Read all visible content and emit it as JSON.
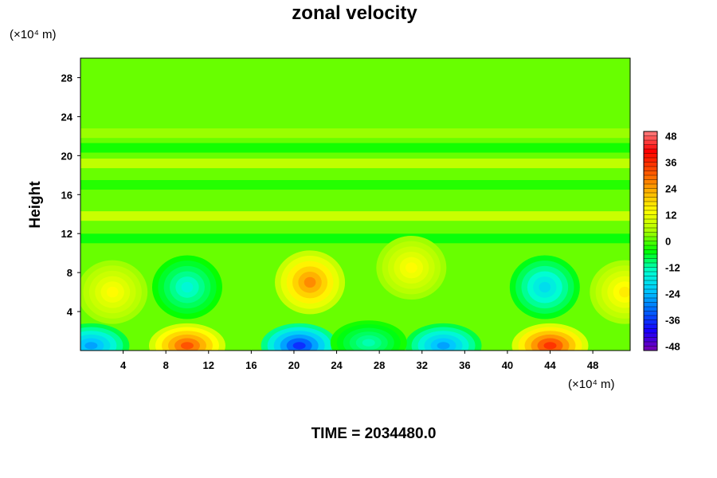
{
  "chart_data": {
    "type": "heatmap",
    "title": "zonal velocity",
    "ylabel": "Height",
    "xunit": "(×10⁴ m)",
    "yunit": "(×10⁴ m)",
    "footer": "TIME = 2034480.0",
    "xlim": [
      0,
      51.5
    ],
    "ylim": [
      0,
      30
    ],
    "x_ticks": [
      4,
      8,
      12,
      16,
      20,
      24,
      28,
      32,
      36,
      40,
      44,
      48
    ],
    "y_ticks": [
      4,
      8,
      12,
      16,
      20,
      24,
      28
    ],
    "colorbar": {
      "range": [
        -50,
        50
      ],
      "tick_values": [
        48,
        36,
        24,
        12,
        0,
        -12,
        -24,
        -36,
        -48
      ],
      "colormap": [
        "#7a00b0",
        "#1800ff",
        "#0066ff",
        "#00c8ff",
        "#00ffd0",
        "#00ff00",
        "#aaff00",
        "#ffff00",
        "#ffb000",
        "#ff5000",
        "#ff0000",
        "#ff8080"
      ]
    },
    "features": [
      {
        "x": 21.5,
        "y": 7.0,
        "value": 30
      },
      {
        "x": 3.0,
        "y": 6.0,
        "value": 16
      },
      {
        "x": 51.0,
        "y": 6.0,
        "value": 18
      },
      {
        "x": 10.0,
        "y": 6.5,
        "value": -17
      },
      {
        "x": 43.5,
        "y": 6.5,
        "value": -22
      },
      {
        "x": 31.0,
        "y": 8.5,
        "value": 16
      },
      {
        "x": 10.0,
        "y": 0.5,
        "value": 36
      },
      {
        "x": 44.0,
        "y": 0.5,
        "value": 40
      },
      {
        "x": 20.5,
        "y": 0.5,
        "value": -42
      },
      {
        "x": 1.0,
        "y": 0.5,
        "value": -30
      },
      {
        "x": 34.0,
        "y": 0.5,
        "value": -30
      },
      {
        "x": 27.0,
        "y": 0.8,
        "value": -14
      }
    ],
    "bands": [
      {
        "y": 13.8,
        "value": 9
      },
      {
        "y": 19.2,
        "value": 8
      },
      {
        "y": 20.8,
        "value": -4
      },
      {
        "y": 22.3,
        "value": 4
      },
      {
        "y": 17.0,
        "value": -3
      },
      {
        "y": 11.5,
        "value": -5
      }
    ]
  }
}
